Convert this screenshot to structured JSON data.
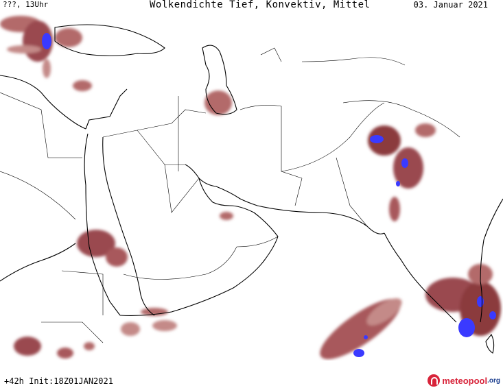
{
  "header": {
    "left_label": "???, 13Uhr",
    "title": "Wolkendichte  Tief, Konvektiv, Mittel",
    "date": "03. Januar 2021"
  },
  "footer": {
    "run_info": "+42h Init:18Z01JAN2021",
    "logo_main": "meteopool",
    "logo_tld": ".org"
  },
  "legend_colors": {
    "cloud_light": "#c48a88",
    "cloud_dense": "#8b3a3e",
    "cloud_convective": "#3a3aff",
    "border": "#000000",
    "background": "#ffffff"
  }
}
